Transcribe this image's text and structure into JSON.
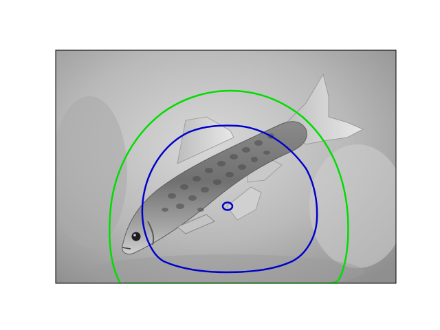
{
  "figure": {
    "image_subject": "fish",
    "image_tone": "grayscale",
    "contours": [
      {
        "label": "outer",
        "color": "#00dd00"
      },
      {
        "label": "inner",
        "color": "#0000cc"
      },
      {
        "label": "center",
        "color": "#0000cc"
      }
    ],
    "frame_color": "#000000",
    "background_color": "#ffffff"
  }
}
